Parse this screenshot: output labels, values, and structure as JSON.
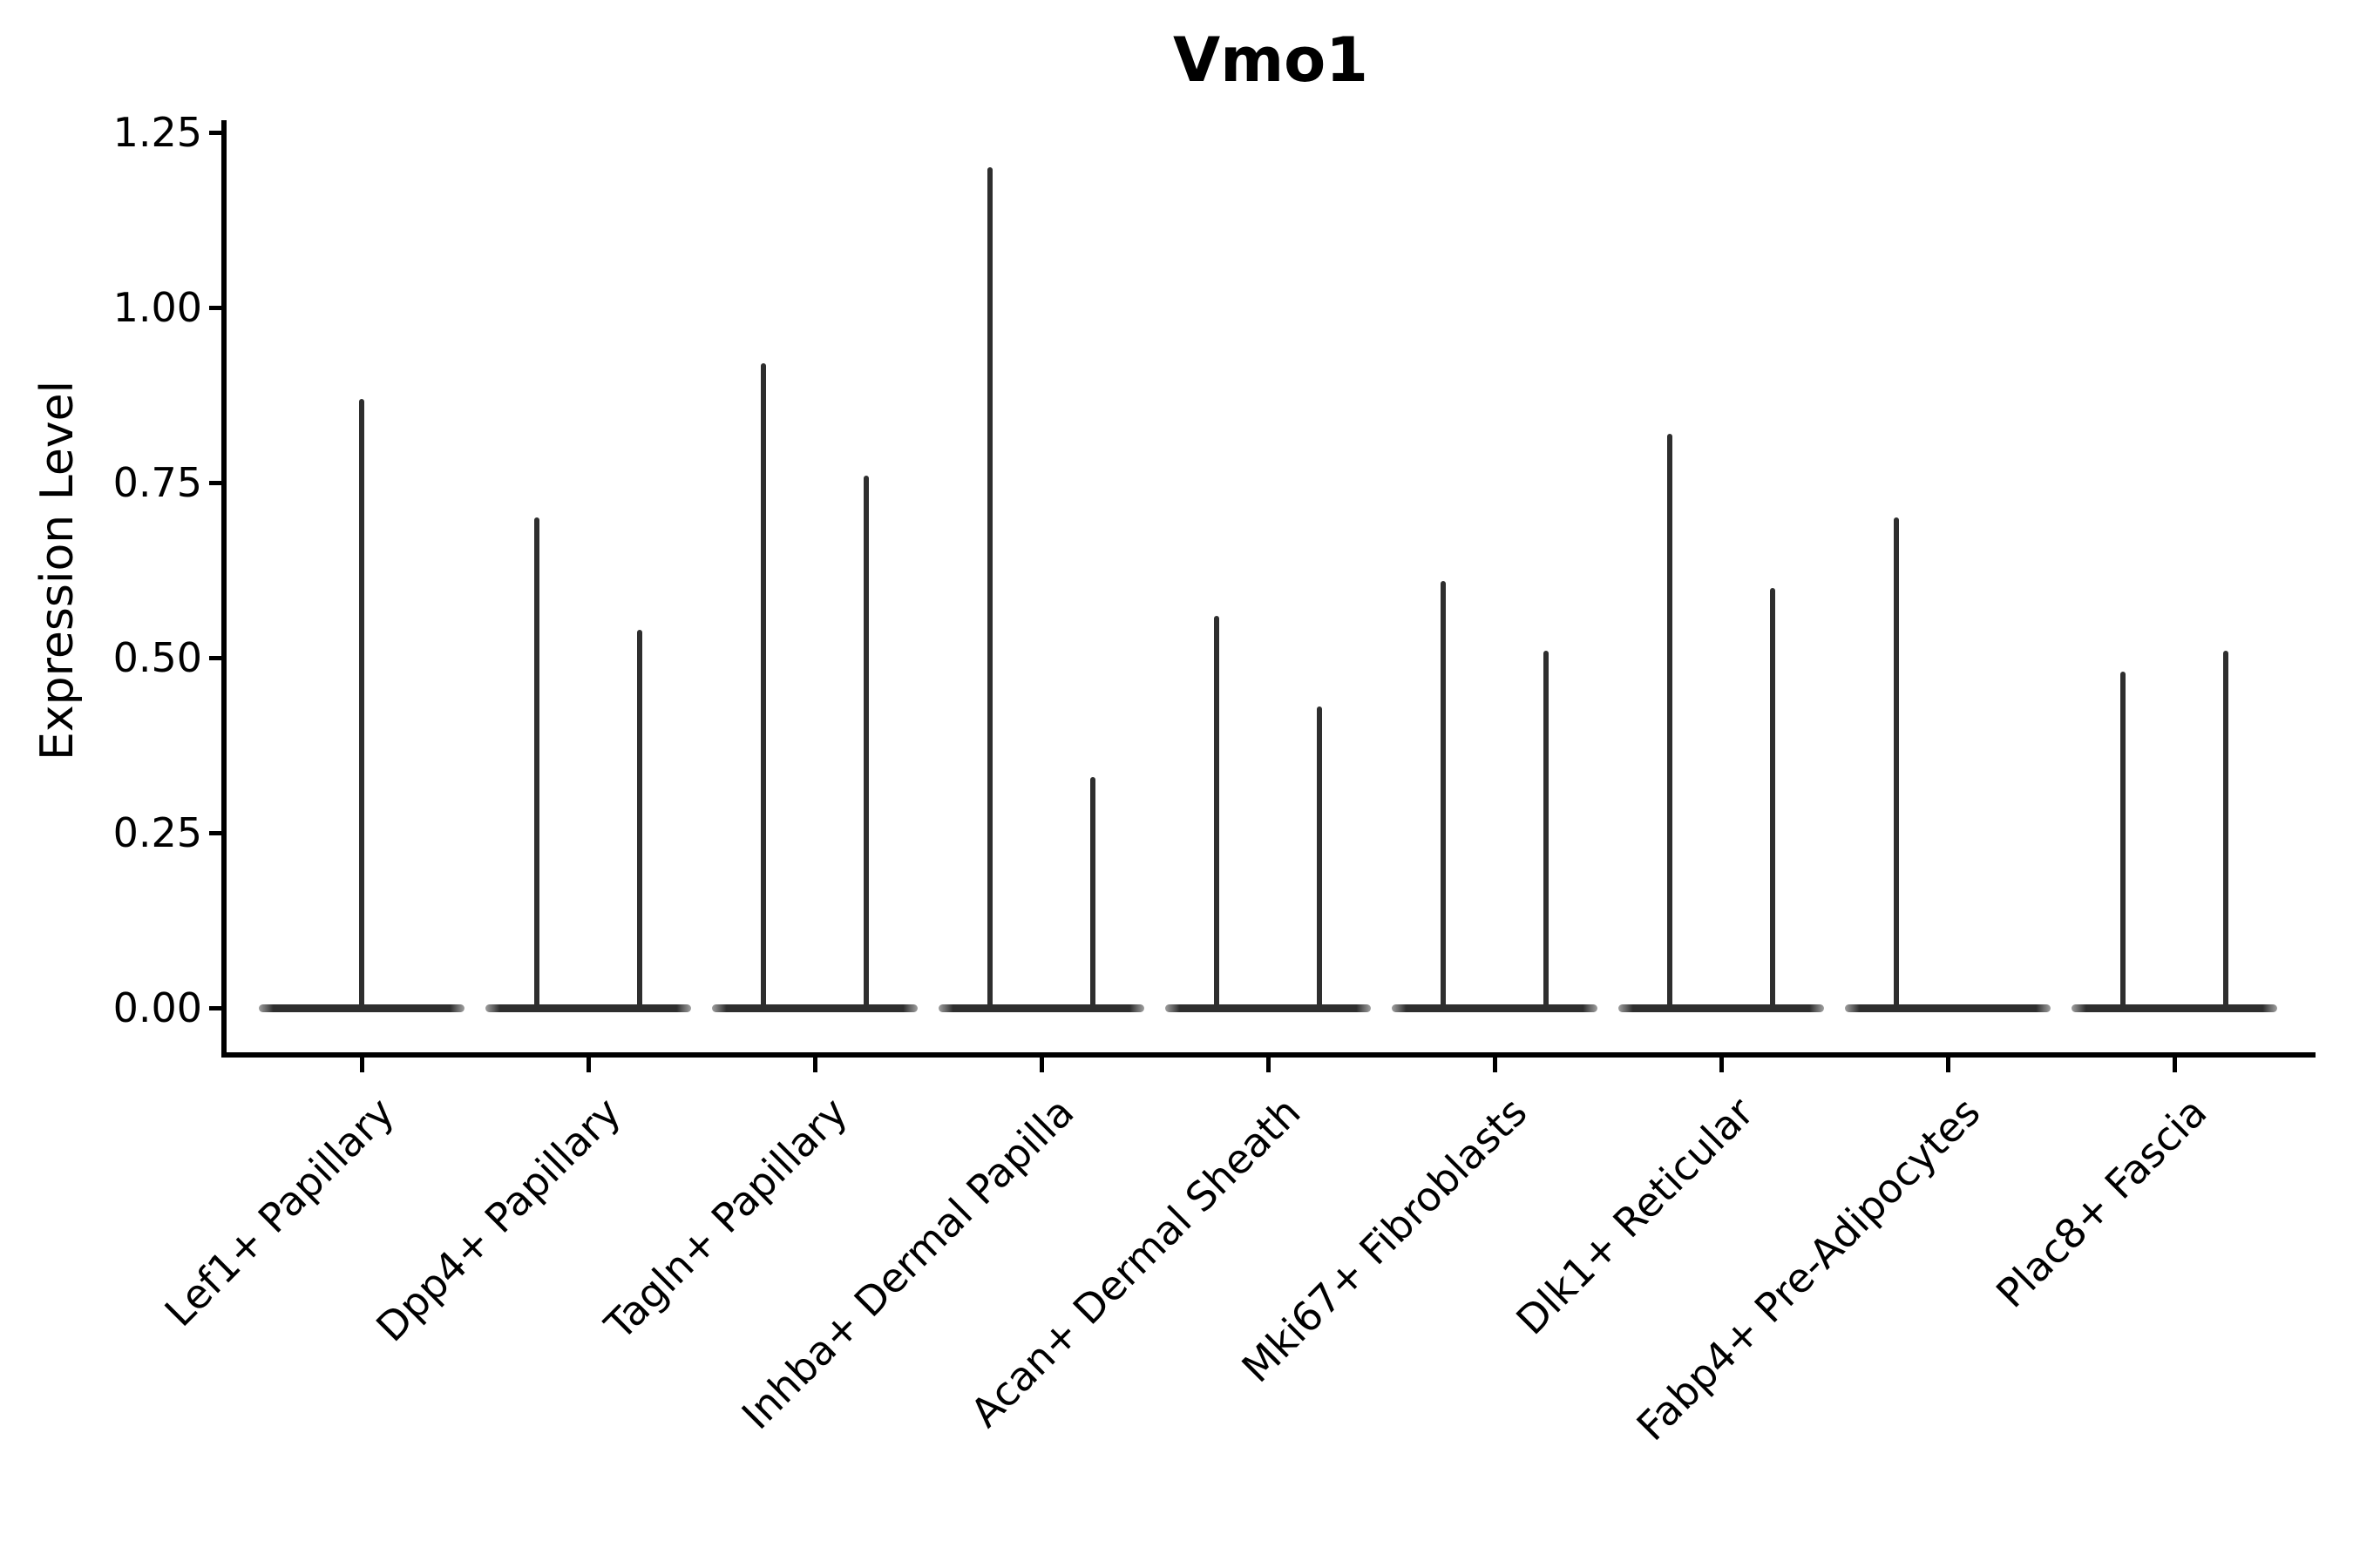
{
  "chart_data": {
    "type": "violin",
    "title": "Vmo1",
    "ylabel": "Expression Level",
    "xlabel": "",
    "ylim": [
      0,
      1.25
    ],
    "yticks": [
      {
        "label": "0.00",
        "value": 0.0
      },
      {
        "label": "0.25",
        "value": 0.25
      },
      {
        "label": "0.50",
        "value": 0.5
      },
      {
        "label": "0.75",
        "value": 0.75
      },
      {
        "label": "1.00",
        "value": 1.0
      },
      {
        "label": "1.25",
        "value": 1.25
      }
    ],
    "grid": false,
    "legend": "none",
    "violin_color": "#2e2e2e",
    "axis_color": "#000000",
    "categories": [
      {
        "label": "Lef1+ Papillary",
        "violins": [
          {
            "position": "full",
            "max_expression": 0.87
          }
        ]
      },
      {
        "label": "Dpp4+ Papillary",
        "violins": [
          {
            "position": "left",
            "max_expression": 0.7
          },
          {
            "position": "right",
            "max_expression": 0.54
          }
        ]
      },
      {
        "label": "Tagln+ Papillary",
        "violins": [
          {
            "position": "left",
            "max_expression": 0.92
          },
          {
            "position": "right",
            "max_expression": 0.76
          }
        ]
      },
      {
        "label": "Inhba+ Dermal Papilla",
        "violins": [
          {
            "position": "left",
            "max_expression": 1.2
          },
          {
            "position": "right",
            "max_expression": 0.33
          }
        ]
      },
      {
        "label": "Acan+ Dermal Sheath",
        "violins": [
          {
            "position": "left",
            "max_expression": 0.56
          },
          {
            "position": "right",
            "max_expression": 0.43
          }
        ]
      },
      {
        "label": "Mki67+ Fibroblasts",
        "violins": [
          {
            "position": "left",
            "max_expression": 0.61
          },
          {
            "position": "right",
            "max_expression": 0.51
          }
        ]
      },
      {
        "label": "Dlk1+ Reticular",
        "violins": [
          {
            "position": "left",
            "max_expression": 0.82
          },
          {
            "position": "right",
            "max_expression": 0.6
          }
        ]
      },
      {
        "label": "Fabp4+ Pre-Adipocytes",
        "violins": [
          {
            "position": "left",
            "max_expression": 0.7
          },
          {
            "position": "right",
            "max_expression": 0.0
          }
        ]
      },
      {
        "label": "Plac8+ Fascia",
        "violins": [
          {
            "position": "left",
            "max_expression": 0.48
          },
          {
            "position": "right",
            "max_expression": 0.51
          }
        ]
      }
    ]
  }
}
